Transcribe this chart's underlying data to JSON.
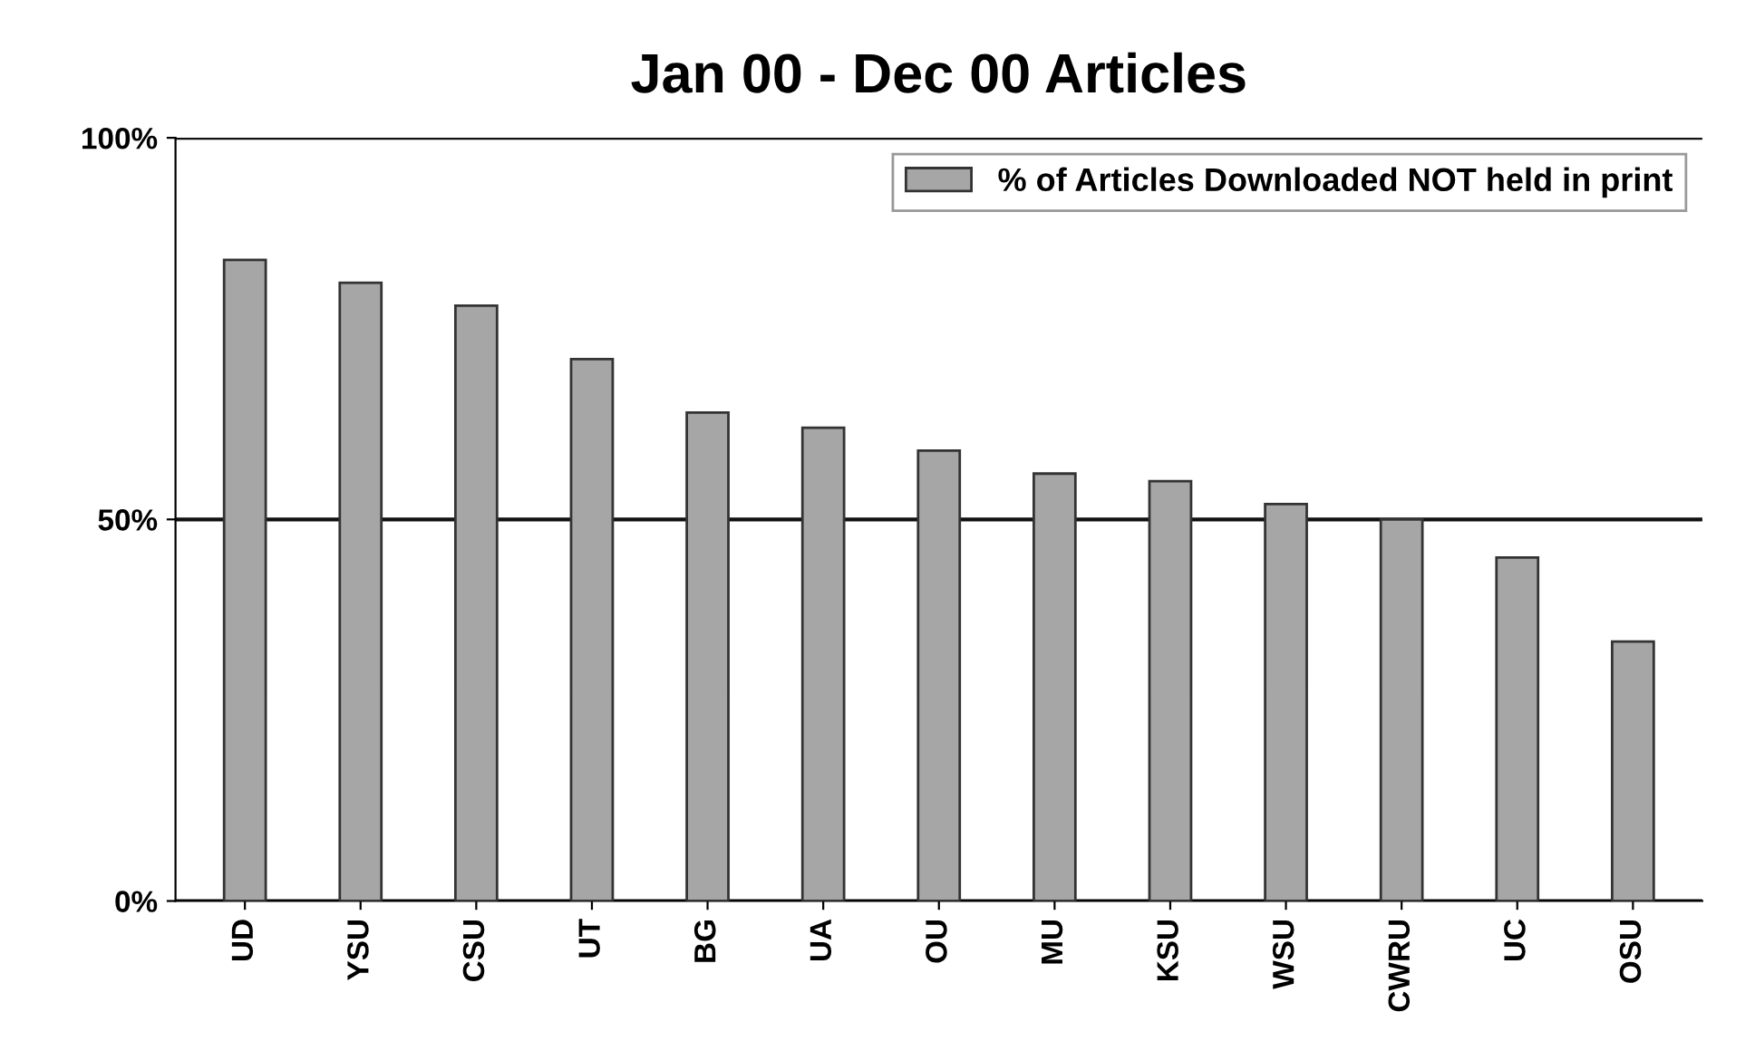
{
  "chart_data": {
    "type": "bar",
    "title": "Jan 00 - Dec 00 Articles",
    "categories": [
      "UD",
      "YSU",
      "CSU",
      "UT",
      "BG",
      "UA",
      "OU",
      "MU",
      "KSU",
      "WSU",
      "CWRU",
      "UC",
      "OSU"
    ],
    "series": [
      {
        "name": "% of Articles Downloaded NOT held in print",
        "color": "#a6a6a6",
        "values": [
          84,
          81,
          78,
          71,
          64,
          62,
          59,
          56,
          55,
          52,
          50,
          45,
          34
        ]
      }
    ],
    "ylim": [
      0,
      100
    ],
    "yticks": [
      {
        "value": 0,
        "label": "0%"
      },
      {
        "value": 50,
        "label": "50%"
      },
      {
        "value": 100,
        "label": "100%"
      }
    ],
    "grid": "y",
    "legend": "top right"
  }
}
